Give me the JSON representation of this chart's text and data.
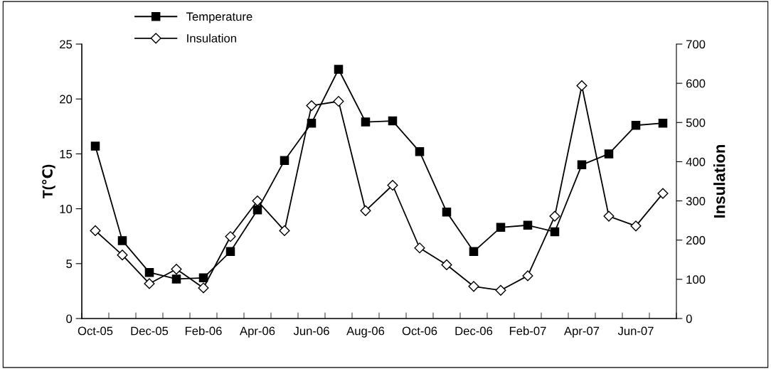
{
  "chart_data": {
    "type": "line",
    "ylabel": "T(℃)",
    "y2label": "Insulation",
    "categories": [
      "Oct-05",
      null,
      "Dec-05",
      null,
      "Feb-06",
      null,
      "Apr-06",
      null,
      "Jun-06",
      null,
      "Aug-06",
      null,
      "Oct-06",
      null,
      "Dec-06",
      null,
      "Feb-07",
      null,
      "Apr-07",
      null,
      "Jun-07",
      null
    ],
    "series": [
      {
        "name": "Temperature",
        "color": "#000000",
        "marker": "square",
        "values": [
          15.7,
          7.1,
          4.2,
          3.6,
          3.7,
          6.1,
          9.9,
          14.4,
          17.8,
          22.7,
          17.9,
          18.0,
          15.2,
          9.7,
          6.1,
          8.3,
          8.5,
          7.9,
          14.0,
          15.0,
          17.6,
          17.8
        ]
      },
      {
        "name": "Insulation",
        "color": "#000000",
        "marker": "diamond",
        "axis": "y2",
        "values": [
          224,
          162,
          89,
          126,
          78,
          209,
          300,
          224,
          543,
          554,
          275,
          340,
          180,
          137,
          82,
          72,
          109,
          261,
          594,
          261,
          236,
          319
        ]
      }
    ],
    "ylim": [
      0,
      25
    ],
    "yticks": [
      0,
      5,
      10,
      15,
      20,
      25
    ],
    "y2lim": [
      0,
      700
    ],
    "y2ticks": [
      0,
      100,
      200,
      300,
      400,
      500,
      600,
      700
    ],
    "grid": false,
    "legend": "top left",
    "line_style": "solid"
  }
}
